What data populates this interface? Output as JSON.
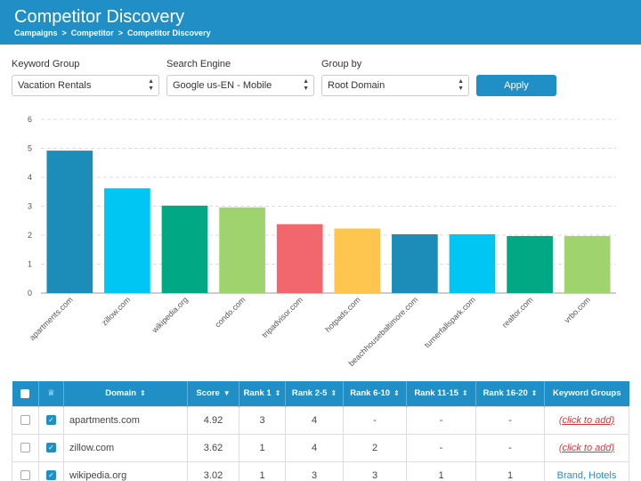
{
  "header": {
    "title": "Competitor Discovery",
    "breadcrumb": [
      "Campaigns",
      "Competitor",
      "Competitor Discovery"
    ],
    "breadcrumb_sep": ">"
  },
  "filters": {
    "keyword_group": {
      "label": "Keyword Group",
      "value": "Vacation Rentals"
    },
    "search_engine": {
      "label": "Search Engine",
      "value": "Google us-EN - Mobile"
    },
    "group_by": {
      "label": "Group by",
      "value": "Root Domain"
    },
    "apply_label": "Apply"
  },
  "chart_data": {
    "type": "bar",
    "categories": [
      "apartments.com",
      "zillow.com",
      "wikipedia.org",
      "condo.com",
      "tripadvisor.com",
      "hotpads.com",
      "beachhousebaltimore.com",
      "turnerfallspark.com",
      "realtor.com",
      "vrbo.com"
    ],
    "values": [
      4.92,
      3.62,
      3.02,
      2.96,
      2.38,
      2.23,
      2.03,
      2.03,
      1.97,
      1.97
    ],
    "colors": [
      "#1b8db8",
      "#00c6f4",
      "#00a884",
      "#9fd36e",
      "#f2666d",
      "#fec64e",
      "#1b8db8",
      "#00c6f4",
      "#00a884",
      "#9fd36e"
    ],
    "ylim": [
      0,
      6
    ],
    "yticks": [
      "0",
      "1",
      "2",
      "3",
      "4",
      "5",
      "6"
    ],
    "grid": true
  },
  "table": {
    "headers": [
      "Domain",
      "Score",
      "Rank 1",
      "Rank 2-5",
      "Rank 6-10",
      "Rank 11-15",
      "Rank 16-20",
      "Keyword Groups"
    ],
    "rows": [
      {
        "domain": "apartments.com",
        "score": "4.92",
        "r1": "3",
        "r2_5": "4",
        "r6_10": "-",
        "r11_15": "-",
        "r16_20": "-",
        "kg": "(click to add)"
      },
      {
        "domain": "zillow.com",
        "score": "3.62",
        "r1": "1",
        "r2_5": "4",
        "r6_10": "2",
        "r11_15": "-",
        "r16_20": "-",
        "kg": "(click to add)"
      },
      {
        "domain": "wikipedia.org",
        "score": "3.02",
        "r1": "1",
        "r2_5": "3",
        "r6_10": "3",
        "r11_15": "1",
        "r16_20": "1",
        "kg": "Brand, Hotels"
      }
    ]
  }
}
